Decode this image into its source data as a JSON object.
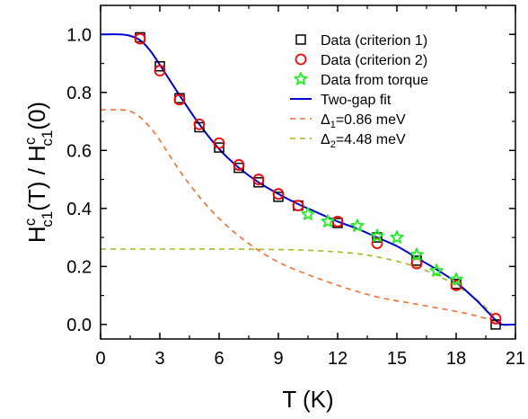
{
  "chart_data": {
    "type": "scatter",
    "xlabel": "T (K)",
    "ylabel_parts": [
      "H",
      "c",
      "c1",
      "(T) / H",
      "c",
      "c1",
      "(0)"
    ],
    "xlim": [
      0,
      21
    ],
    "ylim": [
      -0.05,
      1.1
    ],
    "x_ticks": [
      "0",
      "3",
      "6",
      "9",
      "12",
      "15",
      "18",
      "21"
    ],
    "y_ticks": [
      "0.0",
      "0.2",
      "0.4",
      "0.6",
      "0.8",
      "1.0"
    ],
    "legend_position": "top-right",
    "series": [
      {
        "name": "Data (criterion 1)",
        "marker": "square",
        "color": "#000000",
        "x": [
          2,
          3,
          4,
          5,
          6,
          7,
          8,
          9,
          10,
          12,
          14,
          16,
          18,
          20
        ],
        "y": [
          0.99,
          0.89,
          0.78,
          0.68,
          0.61,
          0.54,
          0.49,
          0.44,
          0.41,
          0.35,
          0.3,
          0.22,
          0.14,
          0.0
        ]
      },
      {
        "name": "Data (criterion 2)",
        "marker": "circle",
        "color": "#ff0000",
        "x": [
          2,
          3,
          4,
          5,
          6,
          7,
          8,
          9,
          10,
          12,
          14,
          16,
          18,
          20
        ],
        "y": [
          0.985,
          0.875,
          0.775,
          0.69,
          0.625,
          0.55,
          0.5,
          0.45,
          0.41,
          0.355,
          0.28,
          0.21,
          0.135,
          0.02
        ]
      },
      {
        "name": "Data from torque",
        "marker": "star",
        "color": "#22ee22",
        "x": [
          10.5,
          11.5,
          13,
          14,
          15,
          16,
          17,
          18
        ],
        "y": [
          0.38,
          0.355,
          0.34,
          0.305,
          0.3,
          0.24,
          0.185,
          0.155
        ]
      },
      {
        "name": "Two-gap fit",
        "marker": "line-solid",
        "color": "#0000cc",
        "x": [
          0,
          1,
          1.5,
          2,
          2.5,
          3,
          4,
          5,
          6,
          7,
          8,
          9,
          10,
          11,
          12,
          13,
          14,
          15,
          16,
          17,
          18,
          19,
          19.5,
          20,
          20.3,
          21
        ],
        "y": [
          1.0,
          1.0,
          0.995,
          0.98,
          0.945,
          0.895,
          0.79,
          0.69,
          0.605,
          0.54,
          0.49,
          0.45,
          0.415,
          0.385,
          0.355,
          0.33,
          0.3,
          0.27,
          0.23,
          0.19,
          0.145,
          0.085,
          0.05,
          0.015,
          0.0,
          0.0
        ]
      },
      {
        "name_parts": [
          "Δ",
          "1",
          "=0.86 meV"
        ],
        "marker": "line-dashed",
        "color": "#f07030",
        "x": [
          0,
          1,
          1.5,
          2,
          2.5,
          3,
          4,
          5,
          6,
          7,
          8,
          9,
          10,
          12,
          14,
          16,
          18,
          19,
          20,
          20.3
        ],
        "y": [
          0.74,
          0.74,
          0.735,
          0.715,
          0.68,
          0.635,
          0.53,
          0.44,
          0.365,
          0.305,
          0.255,
          0.215,
          0.185,
          0.135,
          0.095,
          0.07,
          0.045,
          0.03,
          0.01,
          0.0
        ]
      },
      {
        "name_parts": [
          "Δ",
          "2",
          "=4.48 meV"
        ],
        "marker": "line-dashed",
        "color": "#a8b820",
        "x": [
          0,
          2,
          4,
          6,
          8,
          10,
          11,
          12,
          13,
          14,
          15,
          16,
          17,
          18,
          19,
          19.5,
          20,
          20.3
        ],
        "y": [
          0.26,
          0.26,
          0.26,
          0.26,
          0.259,
          0.257,
          0.254,
          0.25,
          0.244,
          0.233,
          0.218,
          0.198,
          0.17,
          0.135,
          0.088,
          0.058,
          0.022,
          0.0
        ]
      }
    ]
  }
}
